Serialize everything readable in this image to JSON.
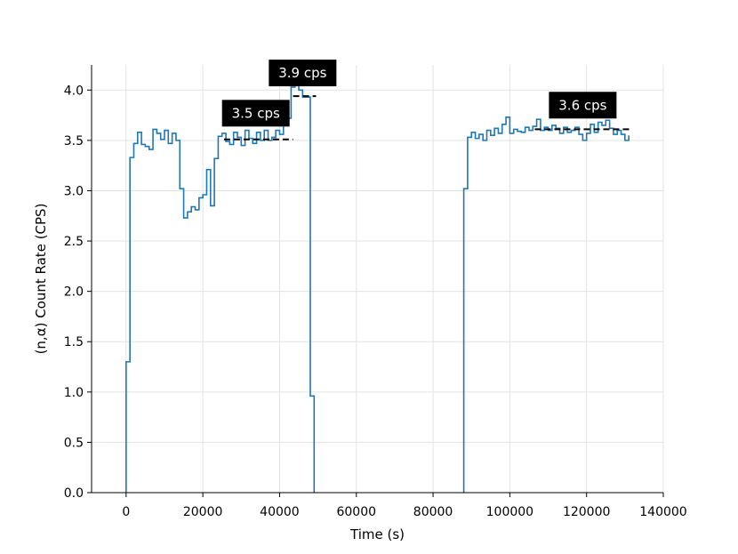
{
  "chart_data": {
    "type": "line",
    "title": "",
    "xlabel": "Time (s)",
    "ylabel": "(n,α) Count Rate (CPS)",
    "xlim": [
      -9000,
      140000
    ],
    "ylim": [
      0,
      4.25
    ],
    "grid": true,
    "xticks": [
      0,
      20000,
      40000,
      60000,
      80000,
      100000,
      120000,
      140000
    ],
    "yticks": [
      0.0,
      0.5,
      1.0,
      1.5,
      2.0,
      2.5,
      3.0,
      3.5,
      4.0
    ],
    "xtick_labels": [
      "0",
      "20000",
      "40000",
      "60000",
      "80000",
      "100000",
      "120000",
      "140000"
    ],
    "ytick_labels": [
      "0.0",
      "0.5",
      "1.0",
      "1.5",
      "2.0",
      "2.5",
      "3.0",
      "3.5",
      "4.0"
    ],
    "series": [
      {
        "style": "step",
        "color": "#1f77b4",
        "segments": [
          {
            "edges": [
              0,
              1000,
              2000,
              3000,
              4000,
              5000,
              6000,
              7000,
              8000,
              9000,
              10000,
              11000,
              12000,
              13000,
              14000,
              15000,
              16000,
              17000,
              18000,
              19000,
              20000,
              21000,
              22000,
              23000,
              24000,
              25000,
              26000,
              27000,
              28000,
              29000,
              30000,
              31000,
              32000,
              33000,
              34000,
              35000,
              36000,
              37000,
              38000,
              39000,
              40000,
              41000,
              42000,
              43000,
              44000,
              45000,
              46000,
              47000,
              48000,
              49000
            ],
            "values": [
              1.3,
              3.33,
              3.47,
              3.58,
              3.46,
              3.44,
              3.41,
              3.61,
              3.57,
              3.51,
              3.6,
              3.47,
              3.57,
              3.5,
              3.02,
              2.73,
              2.79,
              2.84,
              2.81,
              2.93,
              2.96,
              3.21,
              2.85,
              3.32,
              3.54,
              3.57,
              3.49,
              3.46,
              3.58,
              3.53,
              3.45,
              3.6,
              3.52,
              3.47,
              3.58,
              3.5,
              3.6,
              3.5,
              3.53,
              3.6,
              3.56,
              3.65,
              3.72,
              4.03,
              4.06,
              4.0,
              3.93,
              3.93,
              0.96
            ]
          },
          {
            "edges": [
              88000,
              89000,
              90000,
              91000,
              92000,
              93000,
              94000,
              95000,
              96000,
              97000,
              98000,
              99000,
              100000,
              101000,
              102000,
              103000,
              104000,
              105000,
              106000,
              107000,
              108000,
              109000,
              110000,
              111000,
              112000,
              113000,
              114000,
              115000,
              116000,
              117000,
              118000,
              119000,
              120000,
              121000,
              122000,
              123000,
              124000,
              125000,
              126000,
              127000,
              128000,
              129000,
              130000,
              131000
            ],
            "values": [
              3.02,
              3.53,
              3.58,
              3.52,
              3.56,
              3.5,
              3.6,
              3.55,
              3.62,
              3.57,
              3.66,
              3.73,
              3.57,
              3.61,
              3.59,
              3.58,
              3.63,
              3.6,
              3.64,
              3.71,
              3.6,
              3.63,
              3.6,
              3.65,
              3.62,
              3.57,
              3.63,
              3.58,
              3.6,
              3.63,
              3.56,
              3.5,
              3.57,
              3.66,
              3.58,
              3.68,
              3.65,
              3.7,
              3.62,
              3.56,
              3.6,
              3.56,
              3.5,
              3.55
            ]
          }
        ]
      }
    ],
    "reference_lines": [
      {
        "x_start": 25500,
        "x_end": 43500,
        "y": 3.51,
        "color": "#000000",
        "style": "dashed"
      },
      {
        "x_start": 43500,
        "x_end": 49500,
        "y": 3.94,
        "color": "#000000",
        "style": "dashed"
      },
      {
        "x_start": 106500,
        "x_end": 131500,
        "y": 3.61,
        "color": "#000000",
        "style": "dashed"
      }
    ],
    "annotations": [
      {
        "text": "3.5 cps",
        "x": 33800,
        "y": 3.77
      },
      {
        "text": "3.9 cps",
        "x": 46000,
        "y": 4.17
      },
      {
        "text": "3.6 cps",
        "x": 119000,
        "y": 3.85
      }
    ]
  }
}
